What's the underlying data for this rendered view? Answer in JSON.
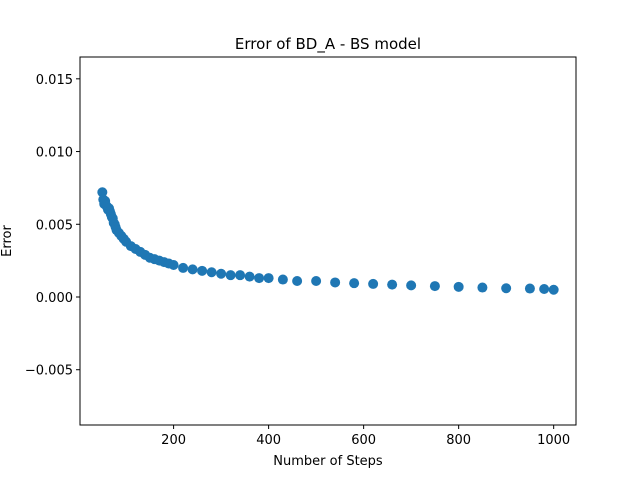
{
  "chart_data": {
    "type": "scatter",
    "title": "Error of BD_A - BS model",
    "xlabel": "Number of Steps",
    "ylabel": "Error",
    "xlim": [
      3,
      1047
    ],
    "ylim": [
      -0.0088,
      0.0165
    ],
    "xticks": [
      200,
      400,
      600,
      800,
      1000
    ],
    "xtick_labels": [
      "200",
      "400",
      "600",
      "800",
      "1000"
    ],
    "yticks": [
      -0.005,
      0.0,
      0.005,
      0.01,
      0.015
    ],
    "ytick_labels": [
      "−0.005",
      "0.000",
      "0.005",
      "0.010",
      "0.015"
    ],
    "grid": false,
    "color": "#1f77b4",
    "x": [
      50,
      52,
      54,
      56,
      58,
      60,
      62,
      64,
      66,
      68,
      70,
      72,
      74,
      76,
      78,
      80,
      85,
      90,
      95,
      100,
      110,
      120,
      130,
      140,
      150,
      160,
      170,
      180,
      190,
      200,
      220,
      240,
      260,
      280,
      300,
      320,
      340,
      360,
      380,
      400,
      430,
      460,
      500,
      540,
      580,
      620,
      660,
      700,
      750,
      800,
      850,
      900,
      950,
      980,
      1000
    ],
    "y": [
      0.0072,
      0.0067,
      0.0064,
      0.0066,
      0.0063,
      0.0062,
      0.006,
      0.0061,
      0.0059,
      0.0057,
      0.0055,
      0.0054,
      0.0051,
      0.005,
      0.0048,
      0.0046,
      0.0044,
      0.0042,
      0.004,
      0.0038,
      0.0035,
      0.0033,
      0.0031,
      0.0029,
      0.0027,
      0.0026,
      0.0025,
      0.0024,
      0.0023,
      0.0022,
      0.002,
      0.0019,
      0.0018,
      0.0017,
      0.0016,
      0.0015,
      0.0015,
      0.0014,
      0.0013,
      0.0013,
      0.0012,
      0.0011,
      0.0011,
      0.001,
      0.00095,
      0.0009,
      0.00085,
      0.0008,
      0.00075,
      0.0007,
      0.00065,
      0.0006,
      0.00058,
      0.00055,
      0.0005
    ]
  }
}
